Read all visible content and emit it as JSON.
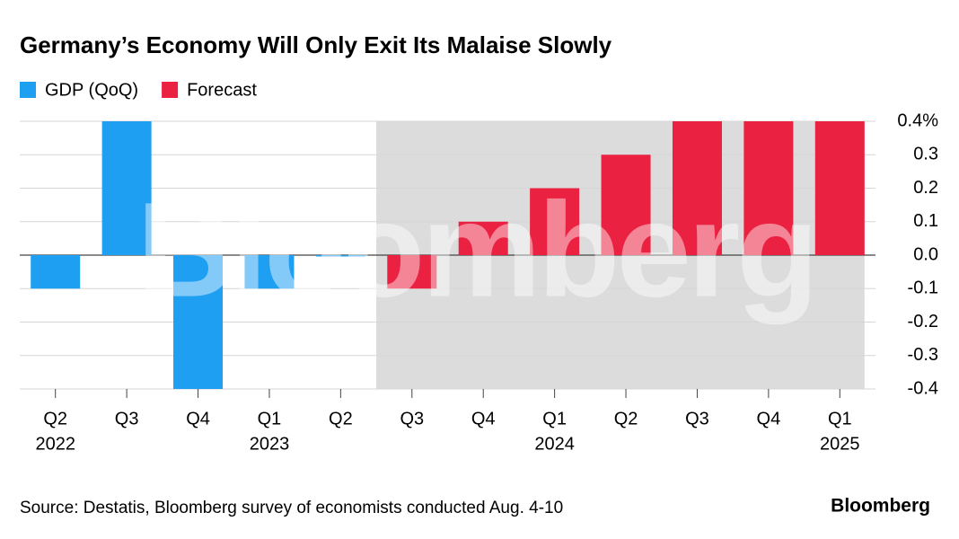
{
  "chart_data": {
    "type": "bar",
    "title": "Germany’s Economy Will Only Exit Its Malaise Slowly",
    "categories": [
      "Q2",
      "Q3",
      "Q4",
      "Q1",
      "Q2",
      "Q3",
      "Q4",
      "Q1",
      "Q2",
      "Q3",
      "Q4",
      "Q1"
    ],
    "category_years": [
      "2022",
      null,
      null,
      "2023",
      null,
      null,
      null,
      "2024",
      null,
      null,
      null,
      "2025"
    ],
    "series": [
      {
        "name": "GDP (QoQ)",
        "color": "#1e9ff2",
        "values": [
          -0.1,
          0.4,
          -0.4,
          -0.1,
          0.0,
          null,
          null,
          null,
          null,
          null,
          null,
          null
        ]
      },
      {
        "name": "Forecast",
        "color": "#ea2140",
        "values": [
          null,
          null,
          null,
          null,
          null,
          -0.1,
          0.1,
          0.2,
          0.3,
          0.4,
          0.4,
          0.4
        ]
      }
    ],
    "ylim": [
      -0.4,
      0.4
    ],
    "yticks": [
      {
        "value": 0.4,
        "label": "0.4%"
      },
      0.3,
      0.2,
      0.1,
      {
        "value": 0,
        "label": "0.0"
      },
      -0.1,
      -0.2,
      -0.3,
      -0.4
    ],
    "grid": true,
    "forecast_shading": true,
    "watermark": "Bloomberg",
    "source": "Source: Destatis, Bloomberg survey of economists conducted Aug. 4-10",
    "logo": "Bloomberg"
  }
}
